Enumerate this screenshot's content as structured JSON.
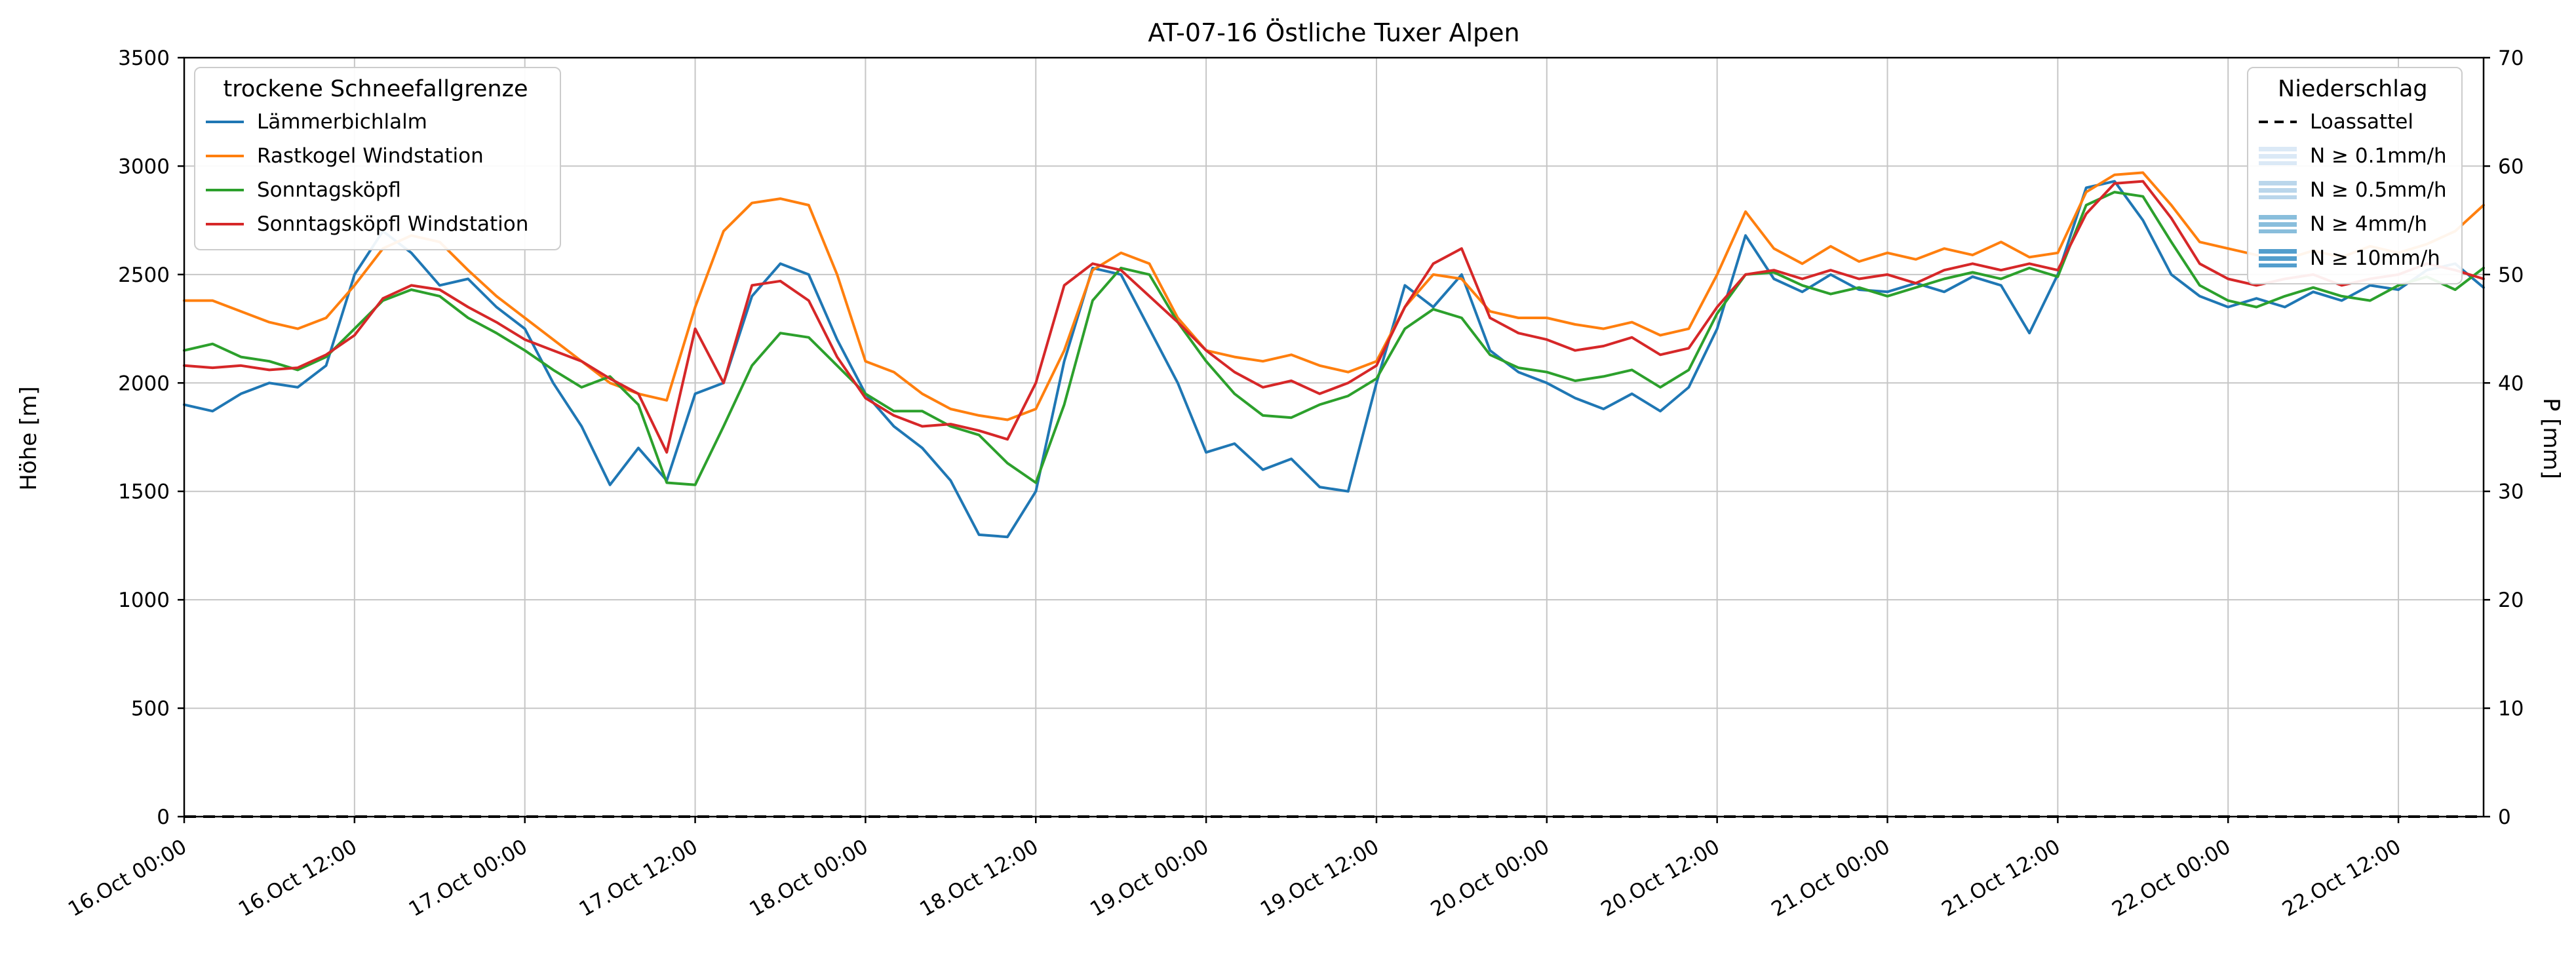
{
  "chart_data": {
    "type": "line",
    "title": "AT-07-16 Östliche Tuxer Alpen",
    "ylabel_left": "Höhe [m]",
    "ylabel_right": "P [mm]",
    "y_left_range": [
      0,
      3500
    ],
    "y_left_ticks": [
      0,
      500,
      1000,
      1500,
      2000,
      2500,
      3000,
      3500
    ],
    "y_right_range": [
      0,
      70
    ],
    "y_right_ticks": [
      0,
      10,
      20,
      30,
      40,
      50,
      60,
      70
    ],
    "x_range_hours": [
      0,
      162
    ],
    "x_step_hours": 2,
    "grid": true,
    "grid_color": "#c6c6c6",
    "spine_color": "#000000",
    "x_ticks": [
      {
        "hour": 0,
        "label": "16.Oct 00:00"
      },
      {
        "hour": 12,
        "label": "16.Oct 12:00"
      },
      {
        "hour": 24,
        "label": "17.Oct 00:00"
      },
      {
        "hour": 36,
        "label": "17.Oct 12:00"
      },
      {
        "hour": 48,
        "label": "18.Oct 00:00"
      },
      {
        "hour": 60,
        "label": "18.Oct 12:00"
      },
      {
        "hour": 72,
        "label": "19.Oct 00:00"
      },
      {
        "hour": 84,
        "label": "19.Oct 12:00"
      },
      {
        "hour": 96,
        "label": "20.Oct 00:00"
      },
      {
        "hour": 108,
        "label": "20.Oct 12:00"
      },
      {
        "hour": 120,
        "label": "21.Oct 00:00"
      },
      {
        "hour": 132,
        "label": "21.Oct 12:00"
      },
      {
        "hour": 144,
        "label": "22.Oct 00:00"
      },
      {
        "hour": 156,
        "label": "22.Oct 12:00"
      }
    ],
    "series": [
      {
        "name": "Lämmerbichlalm",
        "color": "#1f77b4",
        "axis": "left",
        "values": [
          1900,
          1870,
          1950,
          2000,
          1980,
          2080,
          2500,
          2700,
          2600,
          2450,
          2480,
          2350,
          2250,
          2000,
          1800,
          1530,
          1700,
          1550,
          1950,
          2000,
          2400,
          2550,
          2500,
          2200,
          1950,
          1800,
          1700,
          1550,
          1300,
          1290,
          1500,
          2100,
          2530,
          2500,
          2250,
          2000,
          1680,
          1720,
          1600,
          1650,
          1520,
          1500,
          2000,
          2450,
          2350,
          2500,
          2150,
          2050,
          2000,
          1930,
          1880,
          1950,
          1870,
          1980,
          2250,
          2680,
          2480,
          2420,
          2500,
          2430,
          2420,
          2460,
          2420,
          2490,
          2450,
          2230,
          2500,
          2900,
          2930,
          2750,
          2500,
          2400,
          2350,
          2390,
          2350,
          2420,
          2380,
          2450,
          2430,
          2520,
          2550,
          2440
        ]
      },
      {
        "name": "Rastkogel Windstation",
        "color": "#ff7f0e",
        "axis": "left",
        "values": [
          2380,
          2380,
          2330,
          2280,
          2250,
          2300,
          2450,
          2620,
          2680,
          2650,
          2520,
          2400,
          2300,
          2200,
          2100,
          2000,
          1950,
          1920,
          2350,
          2700,
          2830,
          2850,
          2820,
          2500,
          2100,
          2050,
          1950,
          1880,
          1850,
          1830,
          1880,
          2150,
          2520,
          2600,
          2550,
          2300,
          2150,
          2120,
          2100,
          2130,
          2080,
          2050,
          2100,
          2350,
          2500,
          2480,
          2330,
          2300,
          2300,
          2270,
          2250,
          2280,
          2220,
          2250,
          2500,
          2790,
          2620,
          2550,
          2630,
          2560,
          2600,
          2570,
          2620,
          2590,
          2650,
          2580,
          2600,
          2880,
          2960,
          2970,
          2820,
          2650,
          2620,
          2590,
          2570,
          2610,
          2580,
          2630,
          2600,
          2640,
          2700,
          2820
        ]
      },
      {
        "name": "Sonntagsköpfl",
        "color": "#2ca02c",
        "axis": "left",
        "values": [
          2150,
          2180,
          2120,
          2100,
          2060,
          2120,
          2250,
          2380,
          2430,
          2400,
          2300,
          2230,
          2150,
          2060,
          1980,
          2030,
          1900,
          1540,
          1530,
          1800,
          2080,
          2230,
          2210,
          2080,
          1950,
          1870,
          1870,
          1800,
          1760,
          1630,
          1540,
          1900,
          2380,
          2530,
          2500,
          2280,
          2100,
          1950,
          1850,
          1840,
          1900,
          1940,
          2020,
          2250,
          2340,
          2300,
          2130,
          2070,
          2050,
          2010,
          2030,
          2060,
          1980,
          2060,
          2320,
          2500,
          2510,
          2450,
          2410,
          2440,
          2400,
          2440,
          2480,
          2510,
          2480,
          2530,
          2490,
          2820,
          2880,
          2860,
          2650,
          2450,
          2380,
          2350,
          2400,
          2440,
          2400,
          2380,
          2450,
          2490,
          2430,
          2530
        ]
      },
      {
        "name": "Sonntagsköpfl Windstation",
        "color": "#d62728",
        "axis": "left",
        "values": [
          2080,
          2070,
          2080,
          2060,
          2070,
          2130,
          2220,
          2390,
          2450,
          2430,
          2350,
          2280,
          2200,
          2150,
          2100,
          2020,
          1950,
          1680,
          2250,
          2000,
          2450,
          2470,
          2380,
          2120,
          1930,
          1850,
          1800,
          1810,
          1780,
          1740,
          2000,
          2450,
          2550,
          2520,
          2400,
          2280,
          2150,
          2050,
          1980,
          2010,
          1950,
          2000,
          2080,
          2350,
          2550,
          2620,
          2300,
          2230,
          2200,
          2150,
          2170,
          2210,
          2130,
          2160,
          2350,
          2500,
          2520,
          2480,
          2520,
          2480,
          2500,
          2460,
          2520,
          2550,
          2520,
          2550,
          2520,
          2780,
          2920,
          2930,
          2760,
          2550,
          2480,
          2450,
          2480,
          2500,
          2450,
          2480,
          2500,
          2550,
          2520,
          2480
        ]
      },
      {
        "name": "Loassattel",
        "color": "#000000",
        "axis": "right",
        "style": "dashed",
        "constant_value": 0
      }
    ],
    "legend_left": {
      "title": "trockene Schneefallgrenze",
      "entries": [
        {
          "label": "Lämmerbichlalm",
          "type": "line",
          "color": "#1f77b4"
        },
        {
          "label": "Rastkogel Windstation",
          "type": "line",
          "color": "#ff7f0e"
        },
        {
          "label": "Sonntagsköpfl",
          "type": "line",
          "color": "#2ca02c"
        },
        {
          "label": "Sonntagsköpfl Windstation",
          "type": "line",
          "color": "#d62728"
        }
      ]
    },
    "legend_right": {
      "title": "Niederschlag",
      "entries": [
        {
          "label": "Loassattel",
          "type": "dashed-line",
          "color": "#000000"
        },
        {
          "label": "N ≥ 0.1mm/h",
          "type": "patch",
          "color": "#dbe9f6"
        },
        {
          "label": "N ≥ 0.5mm/h",
          "type": "patch",
          "color": "#bad6eb"
        },
        {
          "label": "N ≥ 4mm/h",
          "type": "patch",
          "color": "#89bedc"
        },
        {
          "label": "N ≥ 10mm/h",
          "type": "patch",
          "color": "#539ecd"
        }
      ]
    }
  }
}
